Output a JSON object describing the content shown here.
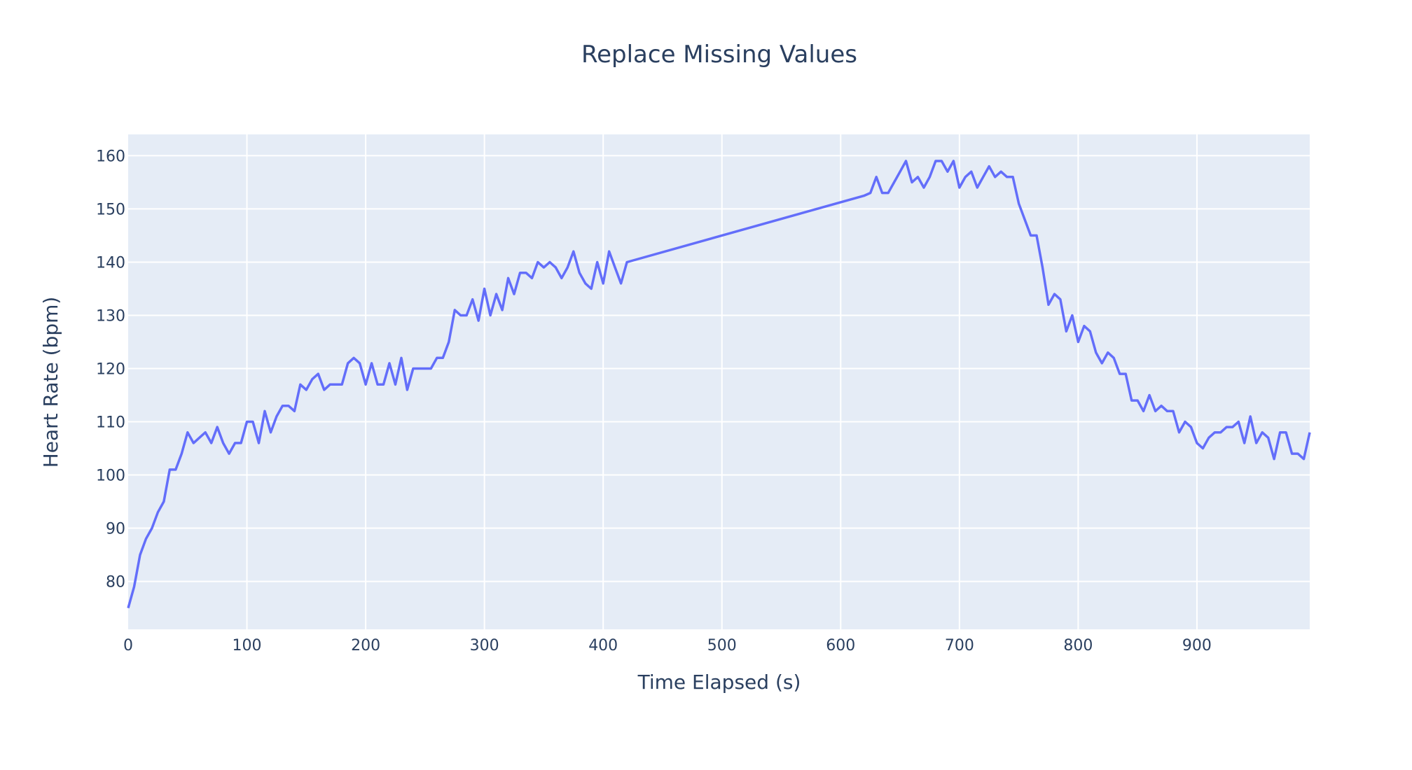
{
  "chart_data": {
    "type": "line",
    "title": "Replace Missing Values",
    "xlabel": "Time Elapsed (s)",
    "ylabel": "Heart Rate (bpm)",
    "xlim": [
      0,
      995
    ],
    "ylim": [
      71,
      164
    ],
    "x_ticks": [
      0,
      100,
      200,
      300,
      400,
      500,
      600,
      700,
      800,
      900
    ],
    "y_ticks": [
      80,
      90,
      100,
      110,
      120,
      130,
      140,
      150,
      160
    ],
    "grid": true,
    "legend": "none",
    "colors": {
      "line": "#636efa",
      "plot_bg": "#e5ecf6",
      "grid": "#ffffff",
      "text": "#2a3f5f"
    },
    "series": [
      {
        "x": [
          0,
          5,
          10,
          15,
          20,
          25,
          30,
          35,
          40,
          45,
          50,
          55,
          60,
          65,
          70,
          75,
          80,
          85,
          90,
          95,
          100,
          105,
          110,
          115,
          120,
          125,
          130,
          135,
          140,
          145,
          150,
          155,
          160,
          165,
          170,
          175,
          180,
          185,
          190,
          195,
          200,
          205,
          210,
          215,
          220,
          225,
          230,
          235,
          240,
          245,
          250,
          255,
          260,
          265,
          270,
          275,
          280,
          285,
          290,
          295,
          300,
          305,
          310,
          315,
          320,
          325,
          330,
          335,
          340,
          345,
          350,
          355,
          360,
          365,
          370,
          375,
          380,
          385,
          390,
          395,
          400,
          405,
          410,
          415,
          420,
          620,
          625,
          630,
          635,
          640,
          645,
          650,
          655,
          660,
          665,
          670,
          675,
          680,
          685,
          690,
          695,
          700,
          705,
          710,
          715,
          720,
          725,
          730,
          735,
          740,
          745,
          750,
          755,
          760,
          765,
          770,
          775,
          780,
          785,
          790,
          795,
          800,
          805,
          810,
          815,
          820,
          825,
          830,
          835,
          840,
          845,
          850,
          855,
          860,
          865,
          870,
          875,
          880,
          885,
          890,
          895,
          900,
          905,
          910,
          915,
          920,
          925,
          930,
          935,
          940,
          945,
          950,
          955,
          960,
          965,
          970,
          975,
          980,
          985,
          990,
          995
        ],
        "y": [
          75,
          79,
          85,
          88,
          90,
          93,
          95,
          101,
          101,
          104,
          108,
          106,
          107,
          108,
          106,
          109,
          106,
          104,
          106,
          106,
          110,
          110,
          106,
          112,
          108,
          111,
          113,
          113,
          112,
          117,
          116,
          118,
          119,
          116,
          117,
          117,
          117,
          121,
          122,
          121,
          117,
          121,
          117,
          117,
          121,
          117,
          122,
          116,
          120,
          120,
          120,
          120,
          122,
          122,
          125,
          131,
          130,
          130,
          133,
          129,
          135,
          130,
          134,
          131,
          137,
          134,
          138,
          138,
          137,
          140,
          139,
          140,
          139,
          137,
          139,
          142,
          138,
          136,
          135,
          140,
          136,
          142,
          139,
          136,
          140,
          152.5,
          153,
          156,
          153,
          153,
          155,
          157,
          159,
          155,
          156,
          154,
          156,
          159,
          159,
          157,
          159,
          154,
          156,
          157,
          154,
          156,
          158,
          156,
          157,
          156,
          156,
          151,
          148,
          145,
          145,
          139,
          132,
          134,
          133,
          127,
          130,
          125,
          128,
          127,
          123,
          121,
          123,
          122,
          119,
          119,
          114,
          114,
          112,
          115,
          112,
          113,
          112,
          112,
          108,
          110,
          109,
          106,
          105,
          107,
          108,
          108,
          109,
          109,
          110,
          106,
          111,
          106,
          108,
          107,
          103,
          108,
          108,
          104,
          104,
          103,
          108
        ]
      }
    ]
  }
}
